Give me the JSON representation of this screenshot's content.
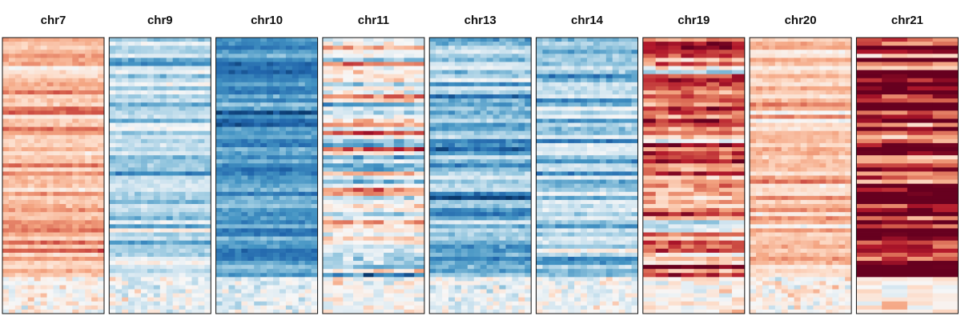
{
  "chart_data": {
    "type": "heatmap",
    "title": "",
    "panels": [
      {
        "name": "chr7",
        "mean": 0.5,
        "noise": 0.3,
        "cols": 16
      },
      {
        "name": "chr9",
        "mean": -0.4,
        "noise": 0.35,
        "cols": 16
      },
      {
        "name": "chr10",
        "mean": -0.9,
        "noise": 0.3,
        "cols": 16
      },
      {
        "name": "chr11",
        "mean": -0.05,
        "noise": 0.75,
        "cols": 10
      },
      {
        "name": "chr13",
        "mean": -0.7,
        "noise": 0.4,
        "cols": 16
      },
      {
        "name": "chr14",
        "mean": -0.5,
        "noise": 0.4,
        "cols": 16
      },
      {
        "name": "chr19",
        "mean": 0.75,
        "noise": 0.7,
        "cols": 8
      },
      {
        "name": "chr20",
        "mean": 0.45,
        "noise": 0.3,
        "cols": 16
      },
      {
        "name": "chr21",
        "mean": 1.2,
        "noise": 0.8,
        "cols": 4
      }
    ],
    "rows": 68,
    "value_range": [
      -1.5,
      1.5
    ],
    "colormap": "RdBu (red = high, blue = low)",
    "colors": {
      "low": "#053061",
      "mid": "#f7f7f7",
      "high": "#67001f"
    },
    "bottom_block_fraction": 0.13,
    "grid": false,
    "legend": "none"
  }
}
